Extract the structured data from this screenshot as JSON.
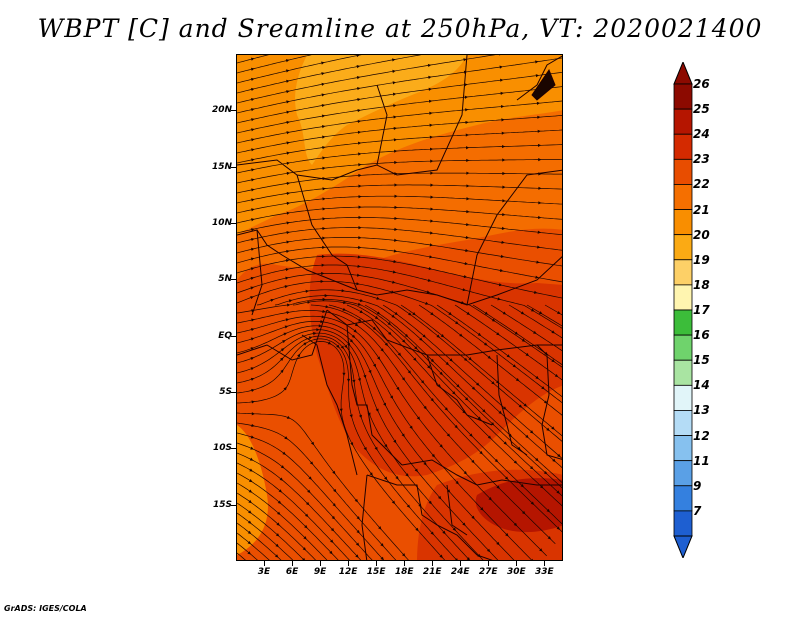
{
  "title": "WBPT [C] and Sreamline at 250hPa, VT: 2020021400",
  "credit": "GrADS: IGES/COLA",
  "lat_labels": [
    {
      "text": "20N",
      "lat": 20
    },
    {
      "text": "15N",
      "lat": 15
    },
    {
      "text": "10N",
      "lat": 10
    },
    {
      "text": "5N",
      "lat": 5
    },
    {
      "text": "EQ",
      "lat": 0
    },
    {
      "text": "5S",
      "lat": -5
    },
    {
      "text": "10S",
      "lat": -10
    },
    {
      "text": "15S",
      "lat": -15
    }
  ],
  "lon_labels": [
    {
      "text": "3E",
      "lon": 3
    },
    {
      "text": "6E",
      "lon": 6
    },
    {
      "text": "9E",
      "lon": 9
    },
    {
      "text": "12E",
      "lon": 12
    },
    {
      "text": "15E",
      "lon": 15
    },
    {
      "text": "18E",
      "lon": 18
    },
    {
      "text": "21E",
      "lon": 21
    },
    {
      "text": "24E",
      "lon": 24
    },
    {
      "text": "27E",
      "lon": 27
    },
    {
      "text": "30E",
      "lon": 30
    },
    {
      "text": "33E",
      "lon": 33
    }
  ],
  "colorbar": {
    "labels": [
      "26",
      "25",
      "24",
      "23",
      "22",
      "21",
      "20",
      "19",
      "18",
      "17",
      "16",
      "15",
      "14",
      "13",
      "12",
      "11",
      "9",
      "7"
    ],
    "colors": [
      "#8c0a00",
      "#b51500",
      "#d42a00",
      "#e84d00",
      "#f56f00",
      "#f98e00",
      "#fbaa14",
      "#fdd067",
      "#fff5b0",
      "#3cbd3a",
      "#6fd36c",
      "#a9e4a2",
      "#e1f5f9",
      "#b4dcf6",
      "#86c1ef",
      "#5aa0e6",
      "#3480df",
      "#1e5fd1"
    ]
  },
  "map": {
    "lon_min": 0,
    "lon_max": 35,
    "lat_min": -20,
    "lat_max": 25,
    "field_colors": {
      "c24": "#d93400",
      "c23": "#ea4f00",
      "c22": "#f46d00",
      "c21": "#f98f00",
      "c20": "#fbac1a"
    }
  }
}
